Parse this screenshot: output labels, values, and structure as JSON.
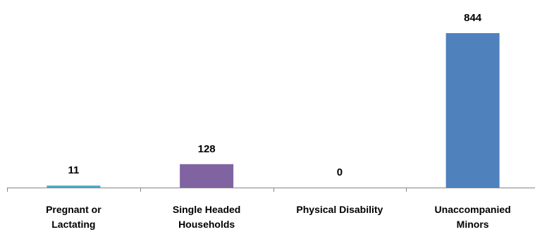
{
  "chart_data": {
    "type": "bar",
    "title": "",
    "xlabel": "",
    "ylabel": "",
    "categories": [
      [
        "Pregnant or",
        "Lactating"
      ],
      [
        "Single Headed",
        "Households"
      ],
      [
        "Physical Disability"
      ],
      [
        "Unaccompanied",
        "Minors"
      ]
    ],
    "values": [
      11,
      128,
      0,
      844
    ],
    "value_labels": [
      "11",
      "128",
      "0",
      "844"
    ],
    "colors": [
      "#4bacc6",
      "#8064a2",
      "#c0504d",
      "#4f81bd"
    ],
    "axis_color": "#868686",
    "ylim": [
      0,
      844
    ],
    "grid": false,
    "legend": "none"
  }
}
